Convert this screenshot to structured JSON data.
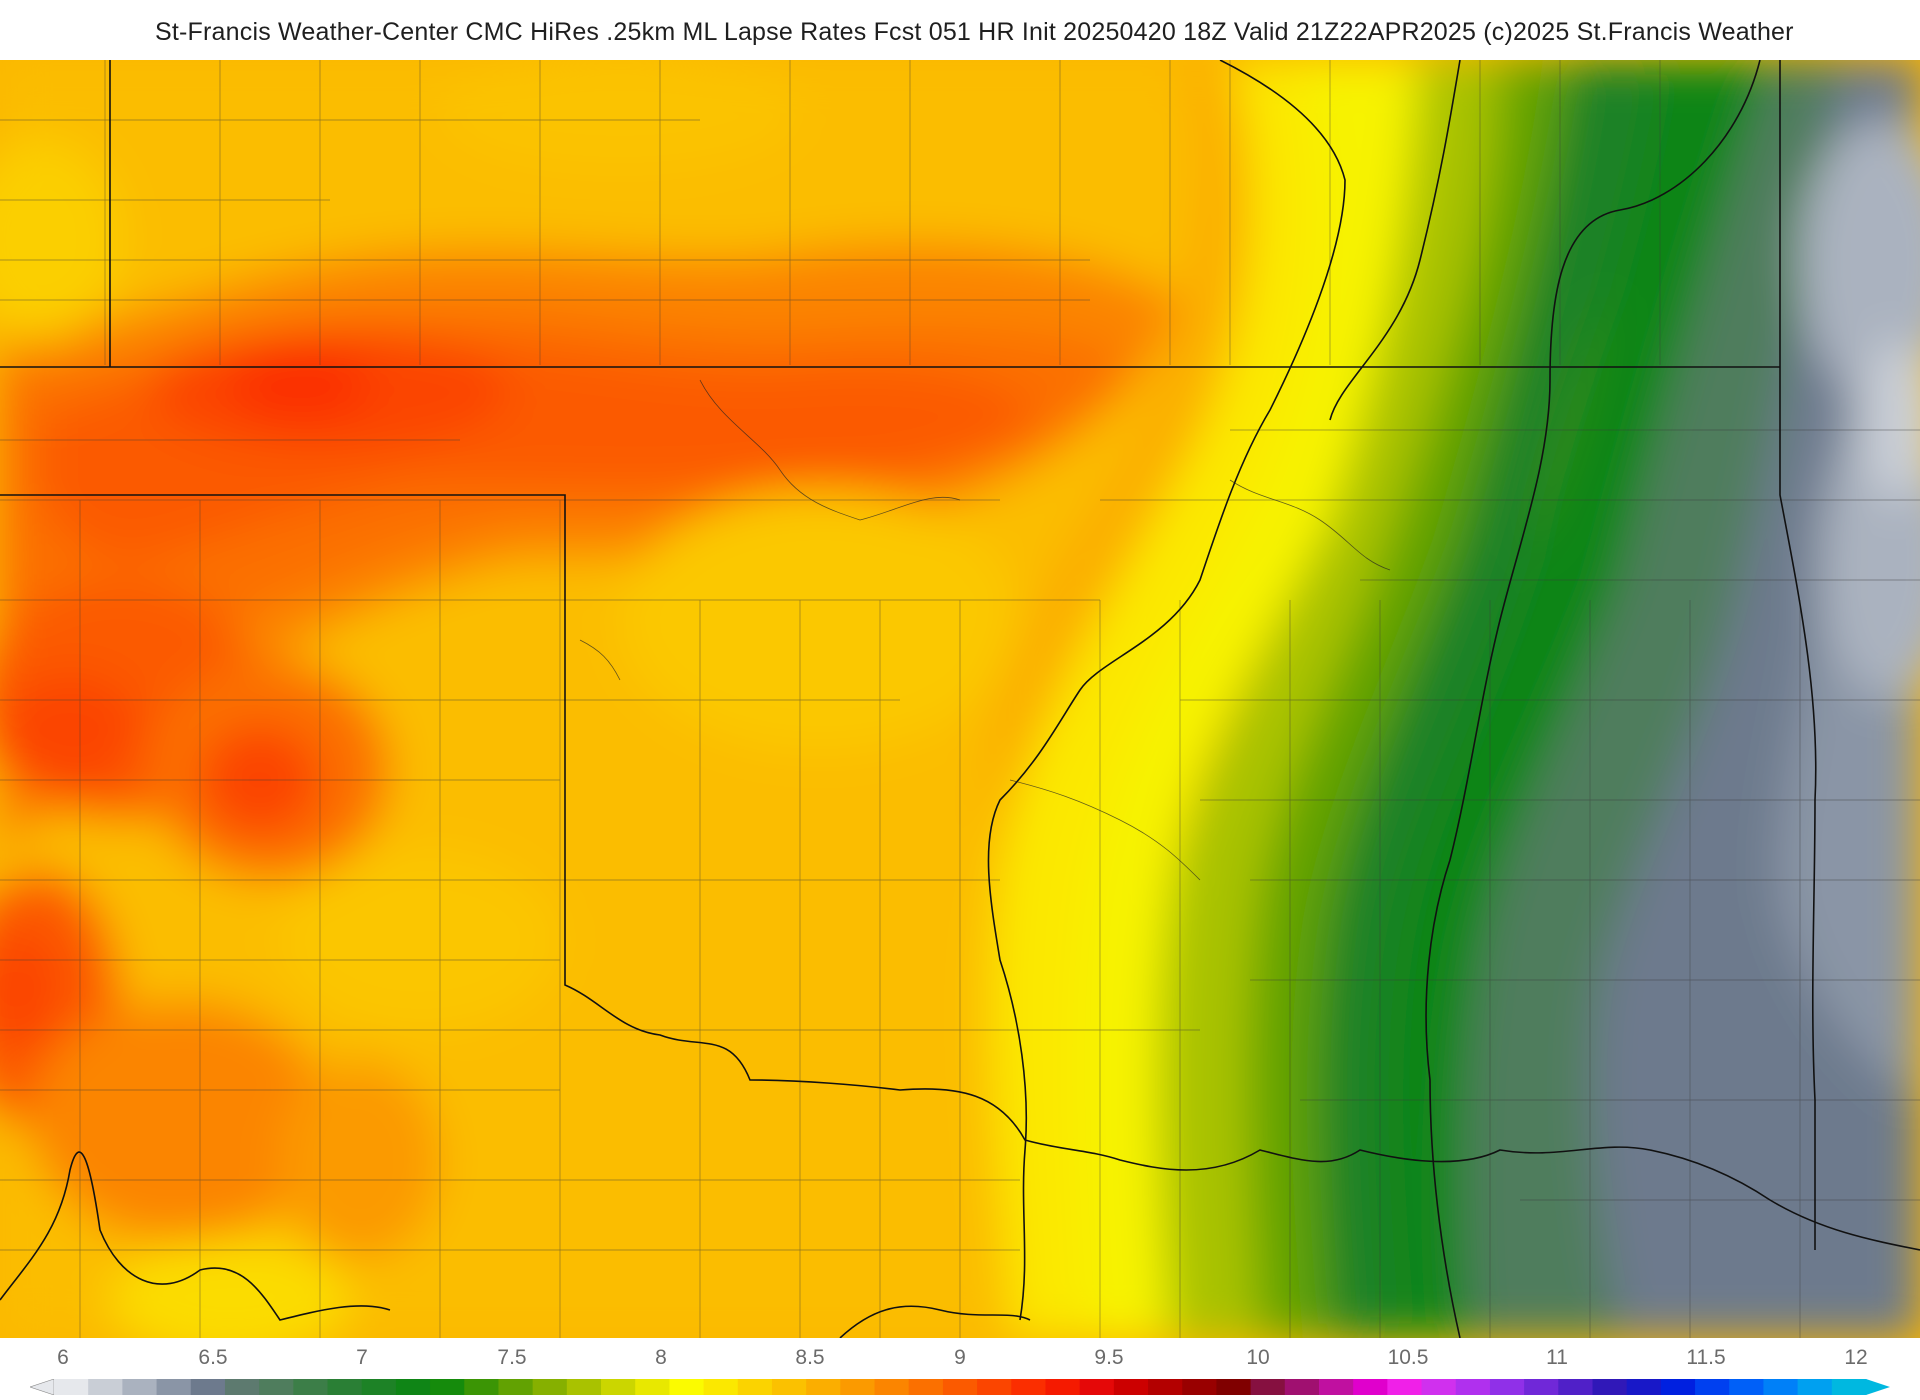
{
  "title": "St-Francis Weather-Center CMC HiRes .25km ML Lapse Rates  Fcst 051 HR Init 20250420 18Z  Valid 21Z22APR2025    (c)2025 St.Francis Weather",
  "legend": {
    "ticks": [
      "6",
      "6.5",
      "7",
      "7.5",
      "8",
      "8.5",
      "9",
      "9.5",
      "10",
      "10.5",
      "11",
      "11.5",
      "12"
    ],
    "colors": [
      "#e6e8ec",
      "#c9ced6",
      "#aab2bf",
      "#8a95a6",
      "#6d7a8d",
      "#5d7a6f",
      "#4f7d5d",
      "#3c7e48",
      "#2a7f35",
      "#1d8226",
      "#0f8516",
      "#158b0c",
      "#3b9505",
      "#62a202",
      "#86b000",
      "#a9c200",
      "#cbd600",
      "#e8e800",
      "#fbfb00",
      "#fbe800",
      "#fbd300",
      "#fbc100",
      "#fbae00",
      "#fb9a00",
      "#fb8500",
      "#fb7000",
      "#fb5a00",
      "#fb4500",
      "#fb2e00",
      "#f51a00",
      "#e50808",
      "#cc0000",
      "#b30000",
      "#990000",
      "#800000",
      "#861040",
      "#a01070",
      "#c010a0",
      "#e000cc",
      "#f020e8",
      "#d030ee",
      "#b030ee",
      "#9030e8",
      "#7028d8",
      "#5020c8",
      "#3018b8",
      "#1818c8",
      "#0020e0",
      "#0040f0",
      "#0060f8",
      "#0080f8",
      "#00a0f0",
      "#00b8e0"
    ]
  },
  "map": {
    "quantity": "ML Lapse Rates",
    "units_range": [
      6,
      12
    ]
  }
}
